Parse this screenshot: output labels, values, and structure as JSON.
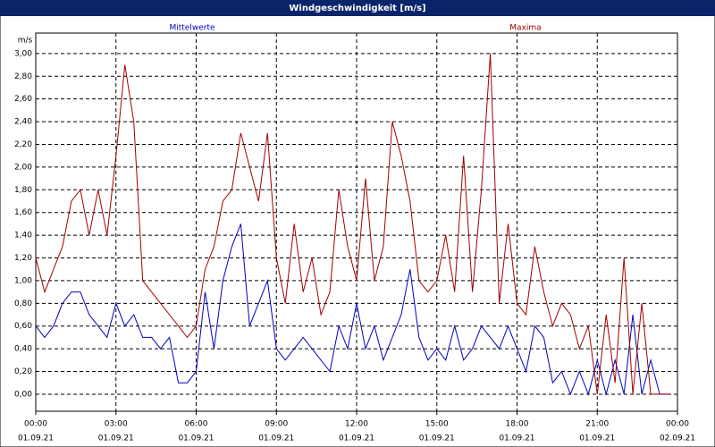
{
  "chart_data": {
    "type": "line",
    "title": "Windgeschwindigkeit [m/s]",
    "y_label": "m/s",
    "x": [
      0,
      20,
      40,
      60,
      80,
      100,
      120,
      140,
      160,
      180,
      200,
      220,
      240,
      260,
      280,
      300,
      320,
      340,
      360,
      380,
      400,
      420,
      440,
      460,
      480,
      500,
      520,
      540,
      560,
      580,
      600,
      620,
      640,
      660,
      680,
      700,
      720,
      740,
      760,
      780,
      800,
      820,
      840,
      860,
      880,
      900,
      920,
      940,
      960,
      980,
      1000,
      1020,
      1040,
      1060,
      1080,
      1100,
      1120,
      1140,
      1160,
      1180,
      1200,
      1220,
      1240,
      1260,
      1280,
      1300,
      1320,
      1340,
      1360,
      1380,
      1400,
      1420
    ],
    "series": [
      {
        "name": "Mittelwerte",
        "color": "#0000c0",
        "values": [
          0.6,
          0.5,
          0.6,
          0.8,
          0.9,
          0.9,
          0.7,
          0.6,
          0.5,
          0.8,
          0.6,
          0.7,
          0.5,
          0.5,
          0.4,
          0.5,
          0.1,
          0.1,
          0.2,
          0.9,
          0.4,
          1.0,
          1.3,
          1.5,
          0.6,
          0.8,
          1.0,
          0.4,
          0.3,
          0.4,
          0.5,
          0.4,
          0.3,
          0.2,
          0.6,
          0.4,
          0.8,
          0.4,
          0.6,
          0.3,
          0.5,
          0.7,
          1.1,
          0.5,
          0.3,
          0.4,
          0.3,
          0.6,
          0.3,
          0.4,
          0.6,
          0.5,
          0.4,
          0.6,
          0.4,
          0.2,
          0.6,
          0.5,
          0.1,
          0.2,
          0.0,
          0.2,
          0.0,
          0.3,
          0.0,
          0.3,
          0.0,
          0.7,
          0.0,
          0.3,
          0.0,
          0.0
        ]
      },
      {
        "name": "Maxima",
        "color": "#a00000",
        "values": [
          1.2,
          0.9,
          1.1,
          1.3,
          1.7,
          1.8,
          1.4,
          1.8,
          1.4,
          2.1,
          2.9,
          2.4,
          1.0,
          0.9,
          0.8,
          0.7,
          0.6,
          0.5,
          0.6,
          1.1,
          1.3,
          1.7,
          1.8,
          2.3,
          2.0,
          1.7,
          2.3,
          1.2,
          0.8,
          1.5,
          0.9,
          1.2,
          0.7,
          0.9,
          1.8,
          1.3,
          1.0,
          1.9,
          1.0,
          1.3,
          2.4,
          2.1,
          1.7,
          1.0,
          0.9,
          1.0,
          1.4,
          0.9,
          2.1,
          0.9,
          1.8,
          3.0,
          0.8,
          1.5,
          0.8,
          0.7,
          1.3,
          0.9,
          0.6,
          0.8,
          0.7,
          0.4,
          0.6,
          0.0,
          0.7,
          0.1,
          1.2,
          0.0,
          0.8,
          0.0,
          0.0,
          0.0
        ]
      }
    ],
    "xlim": [
      0,
      1440
    ],
    "xticks": [
      {
        "value": 0,
        "label": "00:00"
      },
      {
        "value": 180,
        "label": "03:00"
      },
      {
        "value": 360,
        "label": "06:00"
      },
      {
        "value": 540,
        "label": "09:00"
      },
      {
        "value": 720,
        "label": "12:00"
      },
      {
        "value": 900,
        "label": "15:00"
      },
      {
        "value": 1080,
        "label": "18:00"
      },
      {
        "value": 1260,
        "label": "21:00"
      },
      {
        "value": 1440,
        "label": "00:00"
      }
    ],
    "xtick_dates": [
      "01.09.21",
      "01.09.21",
      "01.09.21",
      "01.09.21",
      "01.09.21",
      "01.09.21",
      "01.09.21",
      "01.09.21",
      "02.09.21"
    ],
    "ylim": [
      -0.15,
      3.18
    ],
    "yticks": [
      {
        "value": 0,
        "label": "0,00"
      },
      {
        "value": 0.2,
        "label": "0,20"
      },
      {
        "value": 0.4,
        "label": "0,40"
      },
      {
        "value": 0.6,
        "label": "0,60"
      },
      {
        "value": 0.8,
        "label": "0,80"
      },
      {
        "value": 1.0,
        "label": "1,00"
      },
      {
        "value": 1.2,
        "label": "1,20"
      },
      {
        "value": 1.4,
        "label": "1,40"
      },
      {
        "value": 1.6,
        "label": "1,60"
      },
      {
        "value": 1.8,
        "label": "1,80"
      },
      {
        "value": 2.0,
        "label": "2,00"
      },
      {
        "value": 2.2,
        "label": "2,20"
      },
      {
        "value": 2.4,
        "label": "2,40"
      },
      {
        "value": 2.6,
        "label": "2,60"
      },
      {
        "value": 2.8,
        "label": "2,80"
      },
      {
        "value": 3.0,
        "label": "3,00"
      }
    ],
    "grid": true
  }
}
